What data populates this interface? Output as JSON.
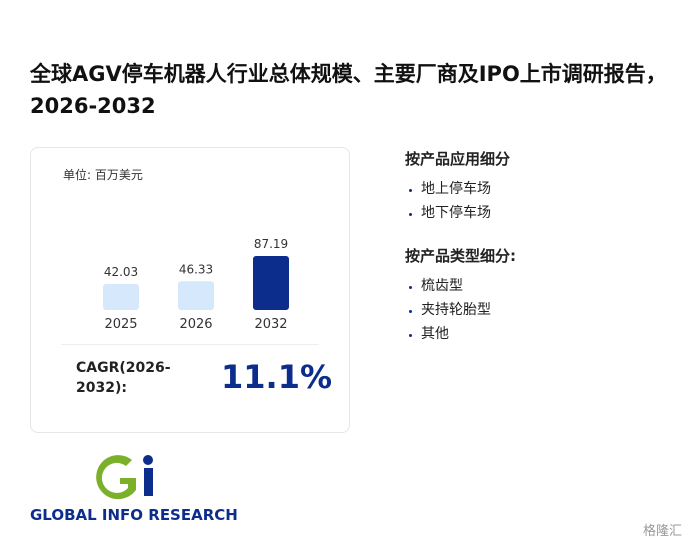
{
  "title": "全球AGV停车机器人行业总体规模、主要厂商及IPO上市调研报告，2026-2032",
  "card": {
    "unit": "单位: 百万美元",
    "chart": {
      "type": "bar",
      "categories": [
        "2025",
        "2026",
        "2032"
      ],
      "values": [
        42.03,
        46.33,
        87.19
      ],
      "colors": [
        "#d6e8fb",
        "#d6e8fb",
        "#0d2d8c"
      ]
    },
    "cagr_label": "CAGR(2026-2032):",
    "cagr_value": "11.1%"
  },
  "segments": [
    {
      "heading": "按产品应用细分",
      "items": [
        "地上停车场",
        "地下停车场"
      ]
    },
    {
      "heading": "按产品类型细分:",
      "items": [
        "梳齿型",
        "夹持轮胎型",
        "其他"
      ]
    }
  ],
  "logo": "GLOBAL INFO RESEARCH",
  "watermark": "格隆汇"
}
